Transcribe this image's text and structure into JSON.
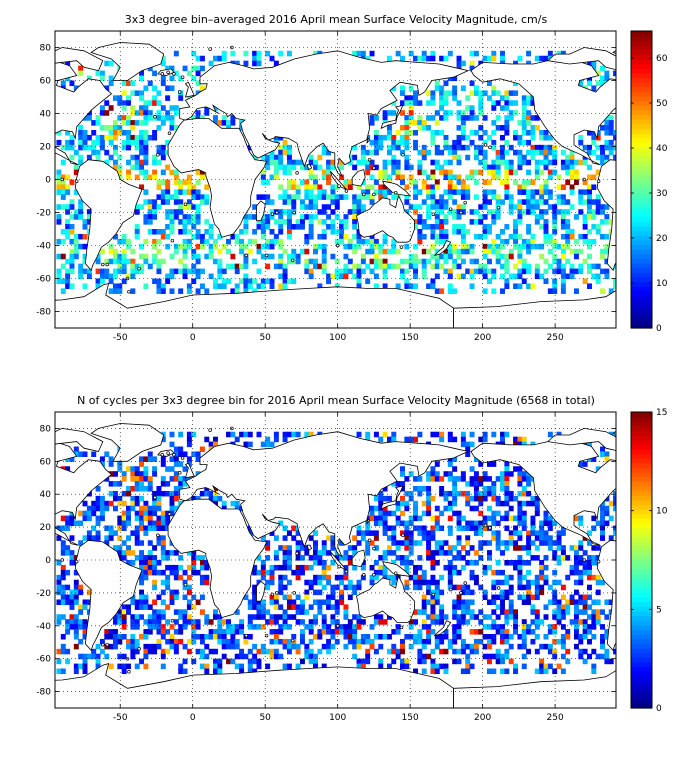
{
  "chart_data": [
    {
      "type": "heatmap",
      "title": "3x3 degree bin–averaged 2016 April mean Surface Velocity Magnitude, cm/s",
      "xlim": [
        -95,
        292
      ],
      "ylim": [
        -90,
        90
      ],
      "xticks": [
        -50,
        0,
        50,
        100,
        150,
        200,
        250
      ],
      "yticks": [
        -80,
        -60,
        -40,
        -20,
        0,
        20,
        40,
        60,
        80
      ],
      "grid": "dotted",
      "colorbar": {
        "limits": [
          0,
          66
        ],
        "ticks": [
          0,
          10,
          20,
          30,
          40,
          50,
          60
        ],
        "colormap": "jet"
      },
      "bin_size_deg": 3,
      "seed": 7
    },
    {
      "type": "heatmap",
      "title": "N of cycles per 3x3 degree bin for 2016 April mean Surface Velocity Magnitude (6568 in total)",
      "xlim": [
        -95,
        292
      ],
      "ylim": [
        -90,
        90
      ],
      "xticks": [
        -50,
        0,
        50,
        100,
        150,
        200,
        250
      ],
      "yticks": [
        -80,
        -60,
        -40,
        -20,
        0,
        20,
        40,
        60,
        80
      ],
      "grid": "dotted",
      "colorbar": {
        "limits": [
          0,
          15
        ],
        "ticks": [
          0,
          5,
          10,
          15
        ],
        "colormap": "jet"
      },
      "bin_size_deg": 3,
      "seed": 31
    }
  ]
}
